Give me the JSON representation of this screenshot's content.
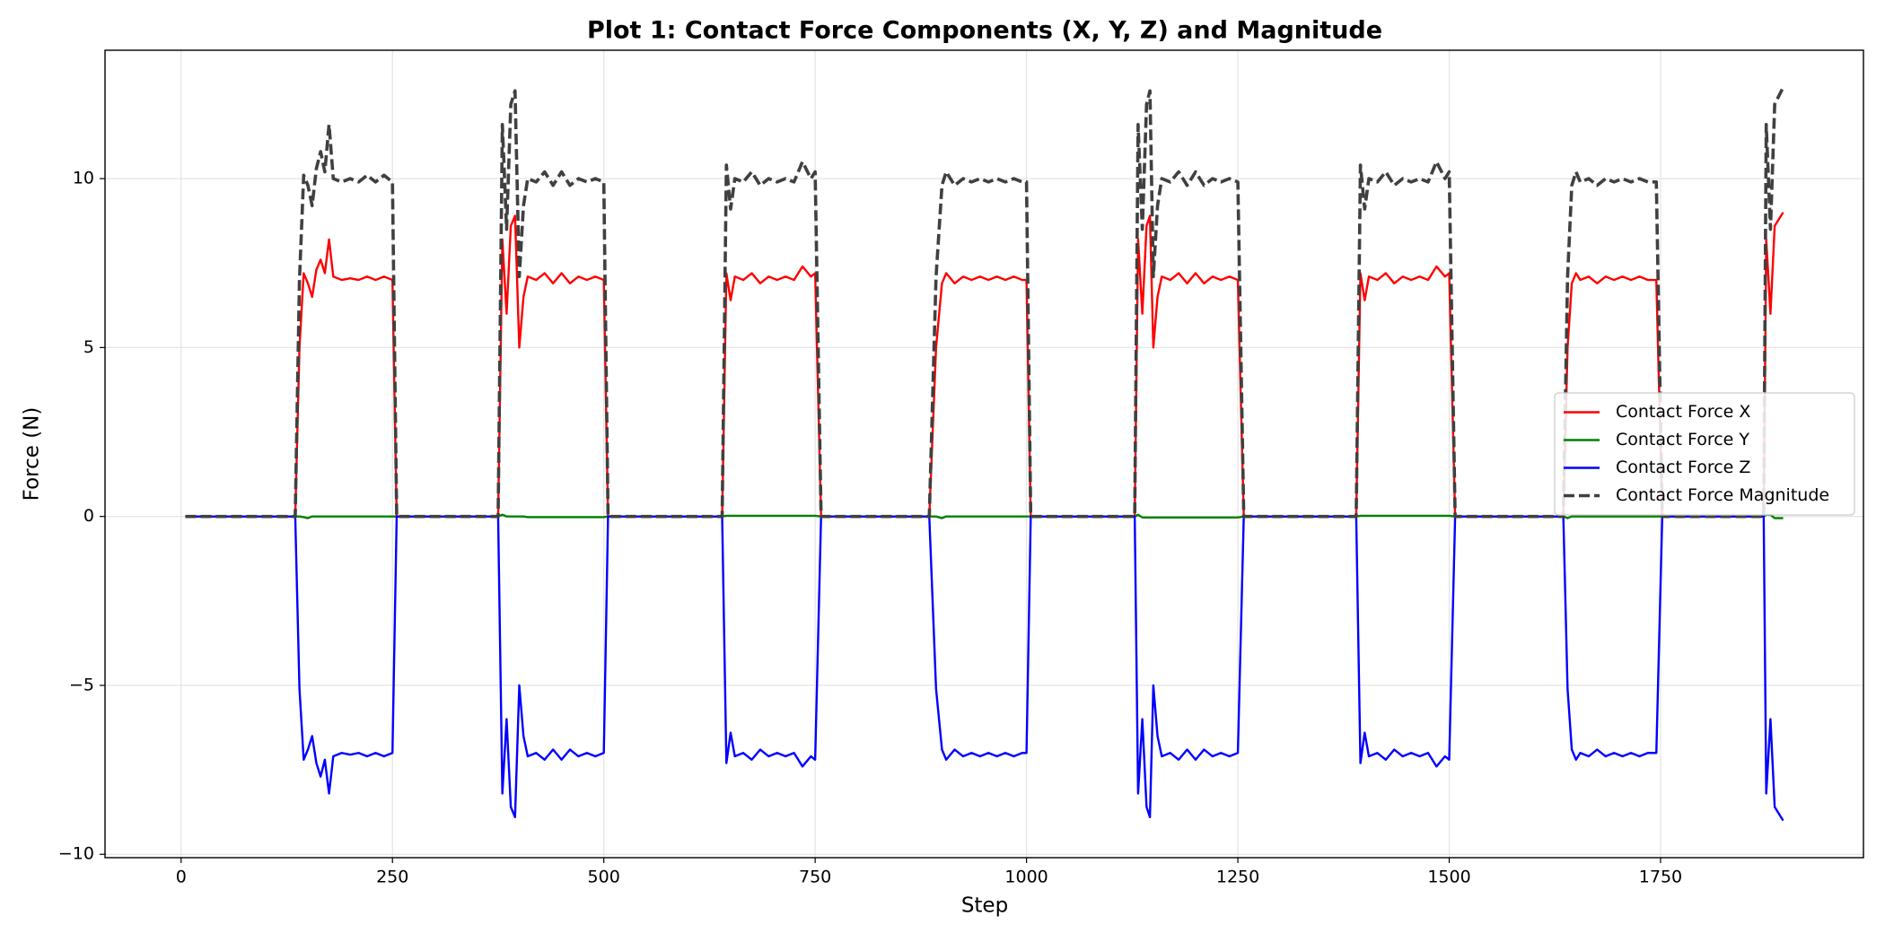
{
  "chart_data": {
    "type": "line",
    "title": "Plot 1: Contact Force Components (X, Y, Z) and Magnitude",
    "x_label": "Step",
    "y_label": "Force (N)",
    "x": [
      5,
      135,
      140,
      145,
      150,
      155,
      160,
      165,
      170,
      175,
      180,
      190,
      200,
      210,
      220,
      230,
      240,
      250,
      255,
      375,
      380,
      385,
      390,
      395,
      400,
      405,
      410,
      420,
      430,
      440,
      450,
      460,
      470,
      480,
      490,
      500,
      505,
      640,
      645,
      650,
      655,
      665,
      675,
      685,
      695,
      705,
      715,
      725,
      735,
      745,
      750,
      757,
      885,
      893,
      900,
      905,
      915,
      925,
      935,
      945,
      955,
      965,
      975,
      985,
      995,
      1000,
      1005,
      1128,
      1132,
      1137,
      1142,
      1146,
      1150,
      1155,
      1160,
      1170,
      1180,
      1190,
      1200,
      1210,
      1220,
      1230,
      1240,
      1250,
      1257,
      1390,
      1395,
      1400,
      1405,
      1415,
      1425,
      1435,
      1445,
      1455,
      1465,
      1475,
      1485,
      1495,
      1500,
      1507,
      1635,
      1640,
      1645,
      1650,
      1655,
      1665,
      1675,
      1685,
      1695,
      1705,
      1715,
      1725,
      1735,
      1745,
      1752,
      1872,
      1875,
      1880,
      1885,
      1895
    ],
    "series": [
      {
        "name": "Contact Force X",
        "color": "#ff0000",
        "dash": false,
        "values": [
          0,
          0,
          5,
          7.2,
          6.9,
          6.5,
          7.3,
          7.6,
          7.2,
          8.2,
          7.1,
          7,
          7.05,
          7,
          7.1,
          7,
          7.1,
          7,
          0,
          0,
          8.2,
          6,
          8.6,
          8.9,
          5,
          6.5,
          7.1,
          7,
          7.2,
          6.9,
          7.2,
          6.9,
          7.1,
          7,
          7.1,
          7,
          0,
          0,
          7.2,
          6.4,
          7.1,
          7,
          7.2,
          6.9,
          7.1,
          7,
          7.1,
          7,
          7.4,
          7.1,
          7.2,
          0,
          0,
          5,
          6.9,
          7.2,
          6.9,
          7.1,
          7,
          7.1,
          7,
          7.1,
          7,
          7.1,
          7,
          7,
          0,
          0,
          8.2,
          6,
          8.6,
          8.9,
          5,
          6.5,
          7.1,
          7,
          7.2,
          6.9,
          7.2,
          6.9,
          7.1,
          7,
          7.1,
          7,
          0,
          0,
          7.2,
          6.4,
          7.1,
          7,
          7.2,
          6.9,
          7.1,
          7,
          7.1,
          7,
          7.4,
          7.1,
          7.2,
          0,
          0,
          5,
          6.9,
          7.2,
          7,
          7.1,
          6.9,
          7.1,
          7,
          7.1,
          7,
          7.1,
          7,
          7,
          0,
          0,
          8.2,
          6,
          8.6,
          9
        ]
      },
      {
        "name": "Contact Force Y",
        "color": "#008000",
        "dash": false,
        "values": [
          0,
          0,
          0,
          -0.02,
          -0.05,
          0,
          0,
          0,
          0,
          0,
          0,
          0,
          0,
          0,
          0,
          0,
          0,
          0,
          0,
          0,
          0.05,
          0,
          0,
          0,
          0,
          0,
          -0.02,
          -0.02,
          -0.02,
          -0.02,
          -0.02,
          -0.02,
          -0.02,
          -0.02,
          -0.02,
          -0.02,
          0,
          0,
          0.02,
          0.02,
          0.02,
          0.02,
          0.02,
          0.02,
          0.02,
          0.02,
          0.02,
          0.02,
          0.02,
          0.02,
          0.02,
          0,
          0,
          0,
          -0.05,
          0,
          0,
          0,
          0,
          0,
          0,
          0,
          0,
          0,
          0,
          0,
          0,
          0,
          0.05,
          -0.03,
          -0.03,
          -0.03,
          -0.03,
          -0.03,
          -0.03,
          -0.03,
          -0.03,
          -0.03,
          -0.03,
          -0.03,
          -0.03,
          -0.03,
          -0.03,
          -0.03,
          0,
          0,
          0.02,
          0.02,
          0.02,
          0.02,
          0.02,
          0.02,
          0.02,
          0.02,
          0.02,
          0.02,
          0.02,
          0.02,
          0.02,
          0,
          0,
          -0.05,
          0,
          0,
          0,
          0,
          0,
          0,
          0,
          0,
          0,
          0,
          0,
          0,
          0,
          0,
          0.05,
          0.05,
          -0.05,
          -0.05
        ]
      },
      {
        "name": "Contact Force Z",
        "color": "#0000ff",
        "dash": false,
        "values": [
          0,
          0,
          -5.1,
          -7.2,
          -6.9,
          -6.5,
          -7.3,
          -7.7,
          -7.2,
          -8.2,
          -7.1,
          -7,
          -7.05,
          -7,
          -7.1,
          -7,
          -7.1,
          -7,
          0,
          0,
          -8.2,
          -6,
          -8.6,
          -8.9,
          -5,
          -6.5,
          -7.1,
          -7,
          -7.2,
          -6.9,
          -7.2,
          -6.9,
          -7.1,
          -7,
          -7.1,
          -7,
          0,
          0,
          -7.3,
          -6.4,
          -7.1,
          -7,
          -7.2,
          -6.9,
          -7.1,
          -7,
          -7.1,
          -7,
          -7.4,
          -7.1,
          -7.2,
          0,
          0,
          -5.1,
          -6.9,
          -7.2,
          -6.9,
          -7.1,
          -7,
          -7.1,
          -7,
          -7.1,
          -7,
          -7.1,
          -7,
          -7,
          0,
          0,
          -8.2,
          -6,
          -8.6,
          -8.9,
          -5,
          -6.5,
          -7.1,
          -7,
          -7.2,
          -6.9,
          -7.2,
          -6.9,
          -7.1,
          -7,
          -7.1,
          -7,
          0,
          0,
          -7.3,
          -6.4,
          -7.1,
          -7,
          -7.2,
          -6.9,
          -7.1,
          -7,
          -7.1,
          -7,
          -7.4,
          -7.1,
          -7.2,
          0,
          0,
          -5.1,
          -6.9,
          -7.2,
          -7,
          -7.1,
          -6.9,
          -7.1,
          -7,
          -7.1,
          -7,
          -7.1,
          -7,
          -7,
          0,
          0,
          -8.2,
          -6,
          -8.6,
          -9
        ]
      },
      {
        "name": "Contact Force Magnitude",
        "color": "#404040",
        "dash": true,
        "values": [
          0,
          0,
          7,
          10.1,
          9.8,
          9.2,
          10.3,
          10.8,
          10.2,
          11.6,
          10,
          9.9,
          10,
          9.9,
          10.1,
          9.9,
          10.1,
          9.9,
          0,
          0,
          11.6,
          8.5,
          12.2,
          12.6,
          7.1,
          9.2,
          10,
          9.9,
          10.2,
          9.8,
          10.2,
          9.8,
          10,
          9.9,
          10,
          9.9,
          0,
          0,
          10.4,
          9.1,
          10,
          9.9,
          10.2,
          9.8,
          10,
          9.9,
          10,
          9.9,
          10.5,
          10,
          10.2,
          0,
          0,
          7.1,
          9.8,
          10.2,
          9.8,
          10,
          9.9,
          10,
          9.9,
          10,
          9.9,
          10,
          9.9,
          9.9,
          0,
          0,
          11.6,
          8.5,
          12.2,
          12.6,
          7.1,
          9.2,
          10,
          9.9,
          10.2,
          9.8,
          10.2,
          9.8,
          10,
          9.9,
          10,
          9.9,
          0,
          0,
          10.4,
          9.1,
          10,
          9.9,
          10.2,
          9.8,
          10,
          9.9,
          10,
          9.9,
          10.5,
          10,
          10.2,
          0,
          0,
          7.1,
          9.8,
          10.2,
          9.9,
          10,
          9.8,
          10,
          9.9,
          10,
          9.9,
          10,
          9.9,
          9.9,
          0,
          0,
          11.6,
          8.5,
          12.2,
          12.7
        ]
      }
    ],
    "xlim": [
      -90,
      1990
    ],
    "xticks": [
      0,
      250,
      500,
      750,
      1000,
      1250,
      1500,
      1750
    ],
    "ylim": [
      -10.1,
      13.8
    ],
    "yticks": [
      {
        "value": -10,
        "label": "−10"
      },
      {
        "value": -5,
        "label": "−5"
      },
      0,
      5,
      10
    ],
    "grid": true,
    "legend": "center right"
  }
}
